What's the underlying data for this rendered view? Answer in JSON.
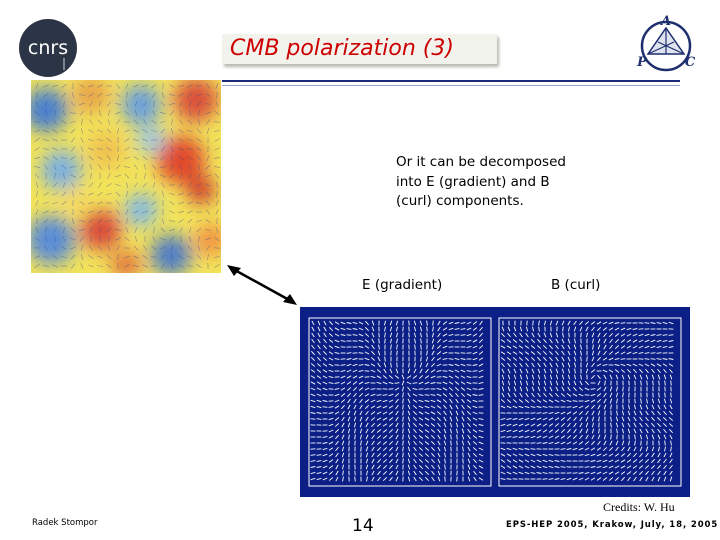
{
  "slide": {
    "title": "CMB polarization (3)",
    "description_lines": [
      "Or it can be decomposed",
      "into E (gradient) and B",
      "(curl) components."
    ],
    "label_e": "E (gradient)",
    "label_b": "B (curl)",
    "credits": "Credits: W. Hu"
  },
  "footer": {
    "author": "Radek Stompor",
    "page": "14",
    "event": "EPS-HEP 2005, Krakow, July, 18, 2005"
  },
  "logos": {
    "left": "cnrs",
    "right_letters": [
      "A",
      "P",
      "C"
    ]
  },
  "colors": {
    "title": "#cc0000",
    "rule": "#1b2a7a",
    "panel": "#0b1f86",
    "logo_dark": "#1f2e6e"
  }
}
